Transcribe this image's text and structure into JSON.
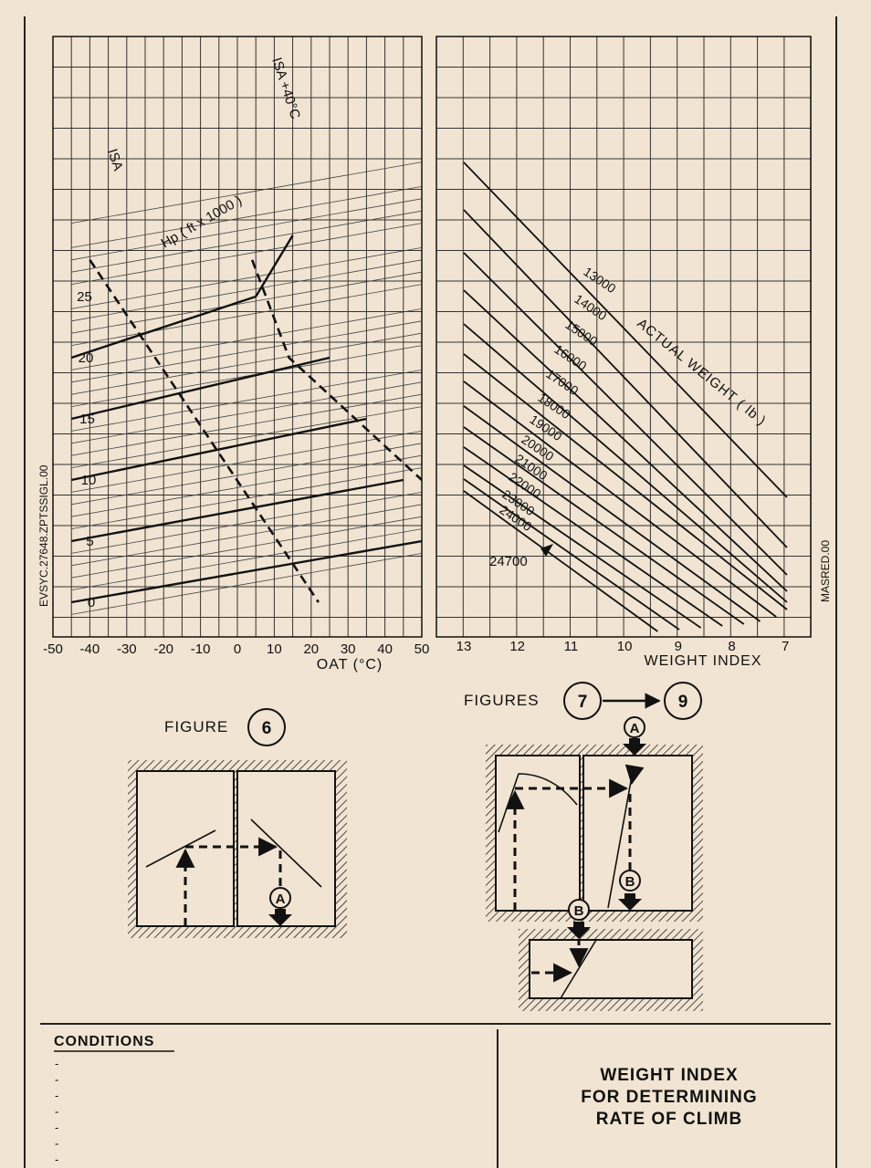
{
  "chart_data": [
    {
      "type": "line",
      "name_ref": "altitude-oat-panel",
      "xlabel": "OAT (°C)",
      "xlim": [
        -50,
        50
      ],
      "xticks": [
        "-50",
        "-40",
        "-30",
        "-20",
        "-10",
        "0",
        "10",
        "20",
        "30",
        "40",
        "50"
      ],
      "ylabel": "Hp ( ft x 1000 )",
      "ylim": [
        -2,
        26
      ],
      "yticks": [
        "0",
        "5",
        "10",
        "15",
        "20",
        "25"
      ],
      "grid": true,
      "series": [
        {
          "name": "ISA",
          "x": [
            -40,
            22
          ],
          "y": [
            28,
            0
          ]
        },
        {
          "name": "ISA +40°C",
          "x": [
            4,
            14,
            50
          ],
          "y": [
            28,
            20,
            10
          ]
        }
      ],
      "bold_lines": [
        {
          "x": [
            -45,
            50
          ],
          "y": [
            0,
            5
          ]
        },
        {
          "x": [
            -45,
            45
          ],
          "y": [
            5,
            10
          ]
        },
        {
          "x": [
            -45,
            35
          ],
          "y": [
            10,
            15
          ]
        },
        {
          "x": [
            -45,
            25
          ],
          "y": [
            15,
            20
          ]
        },
        {
          "x": [
            -45,
            5
          ],
          "y": [
            20,
            25
          ]
        },
        {
          "x": [
            5,
            15
          ],
          "y": [
            25,
            30
          ]
        }
      ]
    },
    {
      "type": "line",
      "name_ref": "actual-weight-panel",
      "xlabel": "WEIGHT INDEX",
      "xticks": [
        "13",
        "12",
        "11",
        "10",
        "9",
        "8",
        "7"
      ],
      "xlim": [
        13,
        7
      ],
      "ylabel": "ACTUAL WEIGHT ( lb )",
      "grid": true,
      "series_labels": [
        "13000",
        "14000",
        "15000",
        "16000",
        "17000",
        "18000",
        "19000",
        "20000",
        "21000",
        "22000",
        "23000",
        "24000"
      ],
      "callout": "24700"
    }
  ],
  "side_labels": {
    "left": "EVSYC.27648.ZPTSSIGL.00",
    "right": "MASRED.00"
  },
  "figure6": {
    "caption": "FIGURE",
    "number": "6",
    "marker": "A"
  },
  "figures79": {
    "caption": "FIGURES",
    "from": "7",
    "to": "9",
    "marker_a": "A",
    "marker_b": "B"
  },
  "footer": {
    "conditions_heading": "CONDITIONS",
    "bullets": [
      "-",
      "-",
      "-",
      "-",
      "-",
      "-",
      "-",
      "-"
    ],
    "title_lines": [
      "WEIGHT INDEX",
      "FOR DETERMINING",
      "RATE OF CLIMB"
    ]
  }
}
